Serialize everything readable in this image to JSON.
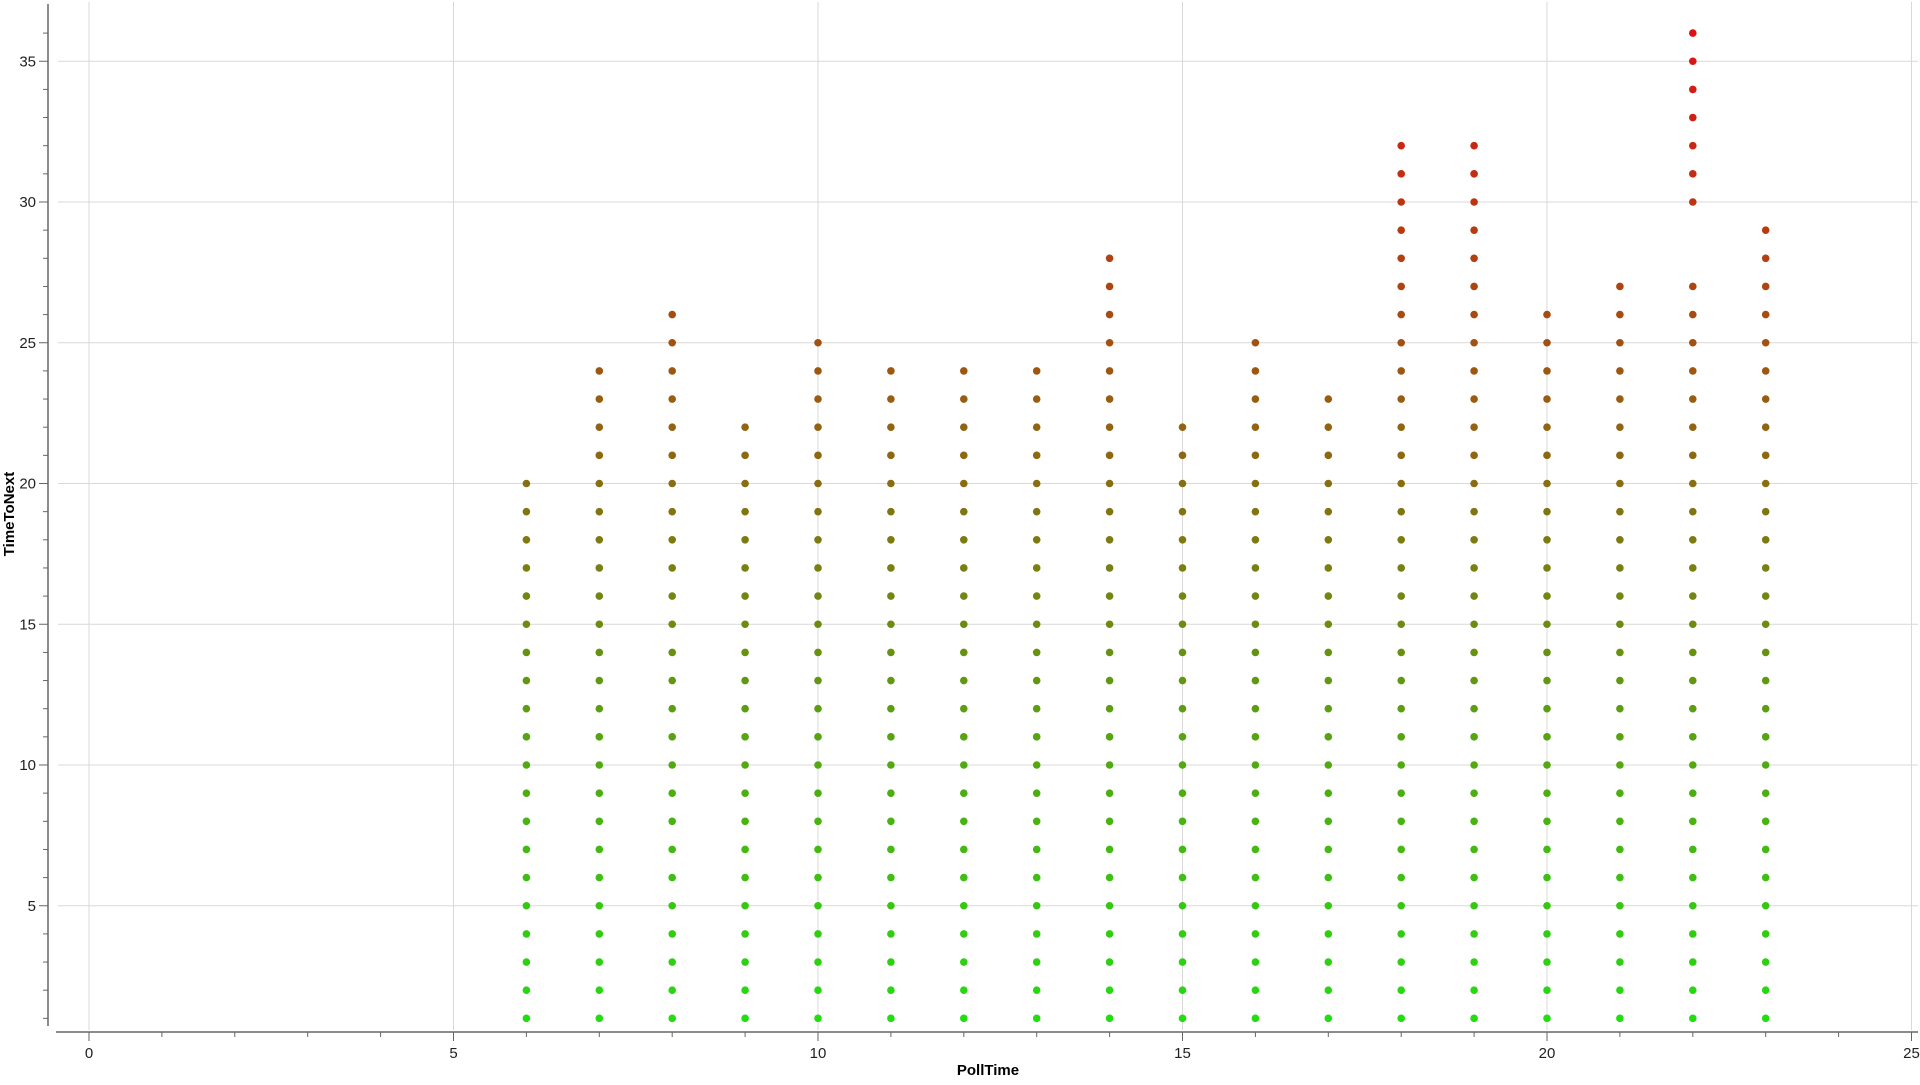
{
  "chart_data": {
    "type": "scatter",
    "title": "",
    "xlabel": "PollTime",
    "ylabel": "TimeToNext",
    "xlim": [
      0,
      25
    ],
    "ylim": [
      0,
      36.7
    ],
    "x_ticks": [
      0,
      5,
      10,
      15,
      20,
      25
    ],
    "y_ticks": [
      5,
      10,
      15,
      20,
      25,
      30,
      35
    ],
    "grid": true,
    "legend": "none",
    "color_scale": {
      "low": "#22dd11",
      "high": "#dd1111",
      "domain": [
        1,
        36
      ]
    },
    "series": [
      {
        "columns": [
          {
            "x": 6,
            "y": [
              1,
              2,
              3,
              4,
              5,
              6,
              7,
              8,
              9,
              10,
              11,
              12,
              13,
              14,
              15,
              16,
              17,
              18,
              19,
              20
            ]
          },
          {
            "x": 7,
            "y": [
              1,
              2,
              3,
              4,
              5,
              6,
              7,
              8,
              9,
              10,
              11,
              12,
              13,
              14,
              15,
              16,
              17,
              18,
              19,
              20,
              21,
              22,
              23,
              24
            ]
          },
          {
            "x": 8,
            "y": [
              1,
              2,
              3,
              4,
              5,
              6,
              7,
              8,
              9,
              10,
              11,
              12,
              13,
              14,
              15,
              16,
              17,
              18,
              19,
              20,
              21,
              22,
              23,
              24,
              25,
              26
            ]
          },
          {
            "x": 9,
            "y": [
              1,
              2,
              3,
              4,
              5,
              6,
              7,
              8,
              9,
              10,
              11,
              12,
              13,
              14,
              15,
              16,
              17,
              18,
              19,
              20,
              21,
              22
            ]
          },
          {
            "x": 10,
            "y": [
              1,
              2,
              3,
              4,
              5,
              6,
              7,
              8,
              9,
              10,
              11,
              12,
              13,
              14,
              15,
              16,
              17,
              18,
              19,
              20,
              21,
              22,
              23,
              24,
              25
            ]
          },
          {
            "x": 11,
            "y": [
              1,
              2,
              3,
              4,
              5,
              6,
              7,
              8,
              9,
              10,
              11,
              12,
              13,
              14,
              15,
              16,
              17,
              18,
              19,
              20,
              21,
              22,
              23,
              24
            ]
          },
          {
            "x": 12,
            "y": [
              1,
              2,
              3,
              4,
              5,
              6,
              7,
              8,
              9,
              10,
              11,
              12,
              13,
              14,
              15,
              16,
              17,
              18,
              19,
              20,
              21,
              22,
              23,
              24
            ]
          },
          {
            "x": 13,
            "y": [
              1,
              2,
              3,
              4,
              5,
              6,
              7,
              8,
              9,
              10,
              11,
              12,
              13,
              14,
              15,
              16,
              17,
              18,
              19,
              20,
              21,
              22,
              23,
              24
            ]
          },
          {
            "x": 14,
            "y": [
              1,
              2,
              3,
              4,
              5,
              6,
              7,
              8,
              9,
              10,
              11,
              12,
              13,
              14,
              15,
              16,
              17,
              18,
              19,
              20,
              21,
              22,
              23,
              24,
              25,
              26,
              27,
              28
            ]
          },
          {
            "x": 15,
            "y": [
              1,
              2,
              3,
              4,
              5,
              6,
              7,
              8,
              9,
              10,
              11,
              12,
              13,
              14,
              15,
              16,
              17,
              18,
              19,
              20,
              21,
              22
            ]
          },
          {
            "x": 16,
            "y": [
              1,
              2,
              3,
              4,
              5,
              6,
              7,
              8,
              9,
              10,
              11,
              12,
              13,
              14,
              15,
              16,
              17,
              18,
              19,
              20,
              21,
              22,
              23,
              24,
              25
            ]
          },
          {
            "x": 17,
            "y": [
              1,
              2,
              3,
              4,
              5,
              6,
              7,
              8,
              9,
              10,
              11,
              12,
              13,
              14,
              15,
              16,
              17,
              18,
              19,
              20,
              21,
              22,
              23
            ]
          },
          {
            "x": 18,
            "y": [
              1,
              2,
              3,
              4,
              5,
              6,
              7,
              8,
              9,
              10,
              11,
              12,
              13,
              14,
              15,
              16,
              17,
              18,
              19,
              20,
              21,
              22,
              23,
              24,
              25,
              26,
              27,
              28,
              29,
              30,
              31,
              32
            ]
          },
          {
            "x": 19,
            "y": [
              1,
              2,
              3,
              4,
              5,
              6,
              7,
              8,
              9,
              10,
              11,
              12,
              13,
              14,
              15,
              16,
              17,
              18,
              19,
              20,
              21,
              22,
              23,
              24,
              25,
              26,
              27,
              28,
              29,
              30,
              31,
              32
            ]
          },
          {
            "x": 20,
            "y": [
              1,
              2,
              3,
              4,
              5,
              6,
              7,
              8,
              9,
              10,
              11,
              12,
              13,
              14,
              15,
              16,
              17,
              18,
              19,
              20,
              21,
              22,
              23,
              24,
              25,
              26
            ]
          },
          {
            "x": 21,
            "y": [
              1,
              2,
              3,
              4,
              5,
              6,
              7,
              8,
              9,
              10,
              11,
              12,
              13,
              14,
              15,
              16,
              17,
              18,
              19,
              20,
              21,
              22,
              23,
              24,
              25,
              26,
              27
            ]
          },
          {
            "x": 22,
            "y": [
              1,
              2,
              3,
              4,
              5,
              6,
              7,
              8,
              9,
              10,
              11,
              12,
              13,
              14,
              15,
              16,
              17,
              18,
              19,
              20,
              21,
              22,
              23,
              24,
              25,
              26,
              27,
              30,
              31,
              32,
              33,
              34,
              35,
              36
            ]
          },
          {
            "x": 23,
            "y": [
              1,
              2,
              3,
              4,
              5,
              6,
              7,
              8,
              9,
              10,
              11,
              12,
              13,
              14,
              15,
              16,
              17,
              18,
              19,
              20,
              21,
              22,
              23,
              24,
              25,
              26,
              27,
              28,
              29
            ]
          }
        ]
      }
    ]
  }
}
